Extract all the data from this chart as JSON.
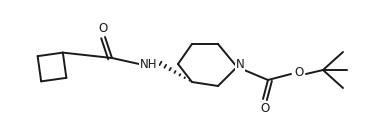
{
  "bg_color": "#ffffff",
  "line_color": "#1a1a1a",
  "line_width": 1.4,
  "font_size": 8.5,
  "figsize": [
    3.68,
    1.32
  ],
  "dpi": 100,
  "xlim": [
    0,
    368
  ],
  "ylim": [
    0,
    132
  ]
}
